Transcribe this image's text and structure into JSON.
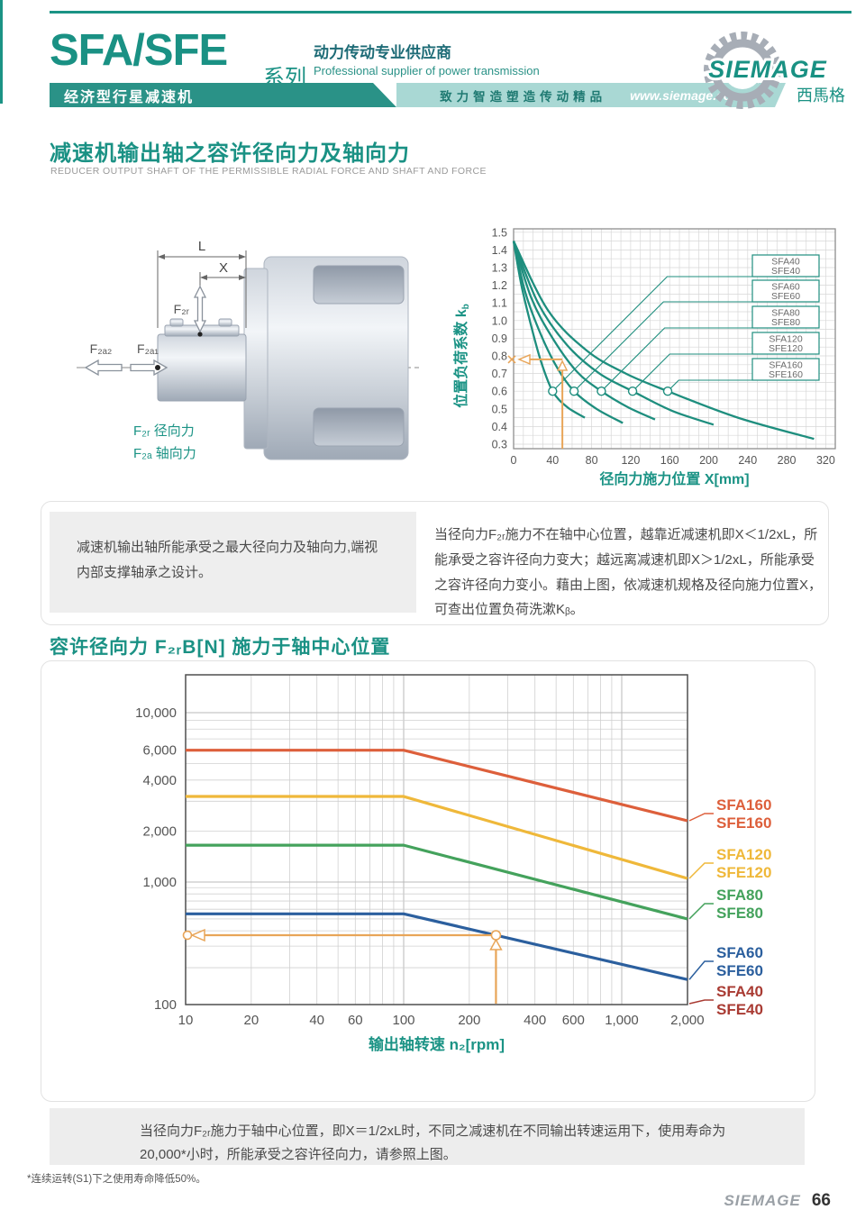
{
  "header": {
    "series": "SFA/SFE",
    "series_suffix": "系列",
    "tagline_zh": "动力传动专业供应商",
    "tagline_en": "Professional supplier of power transmission",
    "band_left": "经济型行星减速机",
    "band_slogan": "致力智造塑造传动精品",
    "band_url": "www.siemage.com",
    "logo_text": "SIEMAGE",
    "logo_zh": "西馬格"
  },
  "section1": {
    "title": "减速机输出轴之容许径向力及轴向力",
    "subtitle": "REDUCER OUTPUT SHAFT OF THE PERMISSIBLE RADIAL FORCE AND SHAFT AND FORCE",
    "diagram": {
      "dim_l": "L",
      "dim_x": "X",
      "f2r": "F₂ᵣ",
      "f2a2": "F₂ₐ₂",
      "f2a1": "F₂ₐ₁",
      "legend_radial": "F₂ᵣ 径向力",
      "legend_axial": "F₂ₐ 轴向力"
    }
  },
  "note_left": "减速机输出轴所能承受之最大径向力及轴向力,端视内部支撑轴承之设计。",
  "note_right": "当径向力F₂ᵣ施力不在轴中心位置，越靠近减速机即X＜1/2xL，所能承受之容许径向力变大；越远离减速机即X＞1/2xL，所能承受之容许径向力变小。藉由上图，依减速机规格及径向施力位置X，可查出位置负荷洗漱Kᵦ。",
  "section2": {
    "title": "容许径向力 F₂ᵣB[N] 施力于轴中心位置"
  },
  "note_bottom": "当径向力F₂ᵣ施力于轴中心位置，即X＝1/2xL时，不同之减速机在不同输出转速运用下，使用寿命为20,000*小时，所能承受之容许径向力，请参照上图。",
  "footnote": "*连续运转(S1)下之使用寿命降低50%。",
  "footer": {
    "brand": "SIEMAGE",
    "page": "66"
  },
  "chart_data": [
    {
      "type": "line",
      "xlabel": "径向力施力位置 X[mm]",
      "ylabel": "位置负荷系数 kb",
      "xlim": [
        0,
        330
      ],
      "ylim": [
        0.3,
        1.5
      ],
      "xticks": [
        0,
        40,
        80,
        120,
        160,
        200,
        240,
        280,
        320
      ],
      "yticks": [
        0.3,
        0.4,
        0.5,
        0.6,
        0.7,
        0.8,
        0.9,
        1.0,
        1.1,
        1.2,
        1.3,
        1.4,
        1.5
      ],
      "line_color": "#1e8e7e",
      "grid": true,
      "legend_position": "right-callout-boxes",
      "series": [
        {
          "name": "SFA40/SFE40",
          "points": [
            [
              0,
              1.45
            ],
            [
              8,
              1.2
            ],
            [
              18,
              0.97
            ],
            [
              28,
              0.77
            ],
            [
              40,
              0.6
            ],
            [
              55,
              0.51
            ],
            [
              73,
              0.45
            ]
          ],
          "marker": [
            40,
            0.6
          ]
        },
        {
          "name": "SFA60/SFE60",
          "points": [
            [
              0,
              1.45
            ],
            [
              12,
              1.16
            ],
            [
              28,
              0.92
            ],
            [
              45,
              0.73
            ],
            [
              62,
              0.6
            ],
            [
              85,
              0.5
            ],
            [
              112,
              0.42
            ]
          ],
          "marker": [
            62,
            0.6
          ]
        },
        {
          "name": "SFA80/SFE80",
          "points": [
            [
              0,
              1.45
            ],
            [
              18,
              1.13
            ],
            [
              40,
              0.9
            ],
            [
              65,
              0.71
            ],
            [
              90,
              0.6
            ],
            [
              117,
              0.51
            ],
            [
              145,
              0.44
            ]
          ],
          "marker": [
            90,
            0.6
          ]
        },
        {
          "name": "SFA120/SFE120",
          "points": [
            [
              0,
              1.45
            ],
            [
              25,
              1.1
            ],
            [
              55,
              0.86
            ],
            [
              88,
              0.7
            ],
            [
              122,
              0.6
            ],
            [
              162,
              0.49
            ],
            [
              205,
              0.41
            ]
          ],
          "marker": [
            122,
            0.6
          ]
        },
        {
          "name": "SFA160/SFE160",
          "points": [
            [
              0,
              1.45
            ],
            [
              35,
              1.06
            ],
            [
              75,
              0.83
            ],
            [
              115,
              0.7
            ],
            [
              158,
              0.6
            ],
            [
              230,
              0.45
            ],
            [
              308,
              0.33
            ]
          ],
          "marker": [
            158,
            0.6
          ]
        }
      ],
      "callouts": [
        [
          "SFA40",
          "SFE40"
        ],
        [
          "SFA60",
          "SFE60"
        ],
        [
          "SFA80",
          "SFE80"
        ],
        [
          "SFA120",
          "SFE120"
        ],
        [
          "SFA160",
          "SFE160"
        ]
      ],
      "annotation": {
        "x": 50,
        "kb": 0.78,
        "color": "#e8a558"
      }
    },
    {
      "type": "line",
      "xscale": "log",
      "yscale": "log",
      "xlabel": "输出轴转速 n₂[rpm]",
      "xlim": [
        10,
        2000
      ],
      "ylim": [
        100,
        13000
      ],
      "xtick_values": [
        10,
        20,
        40,
        60,
        100,
        200,
        400,
        600,
        1000,
        2000
      ],
      "xtick_labels": [
        "10",
        "20",
        "40",
        "60",
        "100",
        "200",
        "400",
        "600",
        "1,000",
        "2,000"
      ],
      "ytick_values": [
        100,
        1000,
        2000,
        4000,
        6000,
        10000
      ],
      "ytick_labels": [
        "100",
        "1,000",
        "2,000",
        "4,000",
        "6,000",
        "10,000"
      ],
      "grid": true,
      "series": [
        {
          "name": "SFA160/SFE160",
          "color": "#dd5f3b",
          "points": [
            [
              10,
              6000
            ],
            [
              100,
              6000
            ],
            [
              2000,
              2300
            ]
          ]
        },
        {
          "name": "SFA120/SFE120",
          "color": "#efb83a",
          "points": [
            [
              10,
              3200
            ],
            [
              100,
              3200
            ],
            [
              2000,
              1050
            ]
          ]
        },
        {
          "name": "SFA80/SFE80",
          "color": "#44a25c",
          "points": [
            [
              10,
              1650
            ],
            [
              100,
              1650
            ],
            [
              2000,
              500
            ]
          ]
        },
        {
          "name": "SFA60/SFE60",
          "color": "#2b5f9e",
          "points": [
            [
              10,
              550
            ],
            [
              100,
              550
            ],
            [
              2000,
              160
            ]
          ]
        },
        {
          "name": "SFA40/SFE40",
          "color": "#a93b33",
          "points": [],
          "note": "curve not visible in plot area; label leader points to bottom-right corner"
        }
      ],
      "labels": [
        {
          "l1": "SFA160",
          "l2": "SFE160",
          "color": "#dd5f3b"
        },
        {
          "l1": "SFA120",
          "l2": "SFE120",
          "color": "#efb83a"
        },
        {
          "l1": "SFA80",
          "l2": "SFE80",
          "color": "#44a25c"
        },
        {
          "l1": "SFA60",
          "l2": "SFE60",
          "color": "#2b5f9e"
        },
        {
          "l1": "SFA40",
          "l2": "SFE40",
          "color": "#a93b33"
        }
      ],
      "annotation": {
        "n2": 265,
        "force": 350,
        "color": "#e8a558"
      }
    }
  ]
}
